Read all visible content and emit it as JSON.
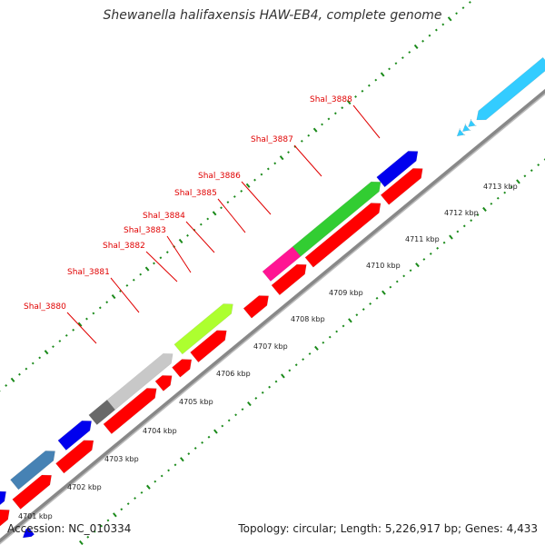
{
  "title": "Shewanella halifaxensis HAW-EB4, complete genome",
  "footer": {
    "accession": "Accession: NC_010334",
    "summary": "Topology: circular; Length: 5,226,917 bp; Genes: 4,433"
  },
  "kbp_labels": [
    "4701 kbp",
    "4702 kbp",
    "4703 kbp",
    "4704 kbp",
    "4705 kbp",
    "4706 kbp",
    "4707 kbp",
    "4708 kbp",
    "4709 kbp",
    "4710 kbp",
    "4711 kbp",
    "4712 kbp",
    "4713 kbp"
  ],
  "gene_labels": [
    "Shal_3880",
    "Shal_3881",
    "Shal_3882",
    "Shal_3883",
    "Shal_3884",
    "Shal_3885",
    "Shal_3886",
    "Shal_3887",
    "Shal_3888"
  ],
  "colors": {
    "orf": "#ff0000",
    "blue": "#0000ee",
    "steelblue": "#4682b4",
    "grey": "#c8c8c8",
    "darkgrey": "#696969",
    "lime": "#adff2f",
    "green": "#32cd32",
    "pink": "#ff1493",
    "cyan": "#33ccff",
    "gene_label": "#e00000",
    "tick": "#1a8a1a"
  }
}
